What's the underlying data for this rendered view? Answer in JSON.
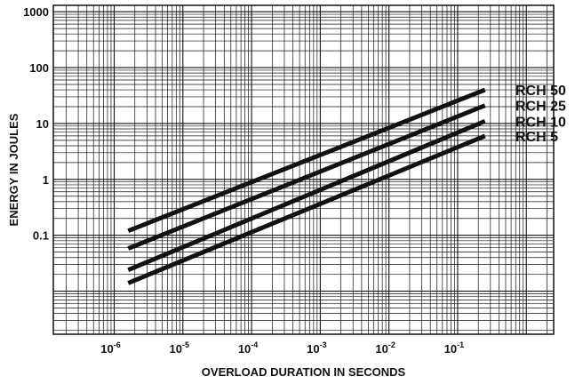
{
  "chart_data": {
    "type": "line",
    "xscale": "log",
    "yscale": "log",
    "xlabel": "OVERLOAD DURATION IN SECONDS",
    "ylabel": "ENERGY IN JOULES",
    "x_ticks": [
      {
        "value": 1e-06,
        "base": "10",
        "exp": "-6"
      },
      {
        "value": 1e-05,
        "base": "10",
        "exp": "-5"
      },
      {
        "value": 0.0001,
        "base": "10",
        "exp": "-4"
      },
      {
        "value": 0.001,
        "base": "10",
        "exp": "-3"
      },
      {
        "value": 0.01,
        "base": "10",
        "exp": "-2"
      },
      {
        "value": 0.1,
        "base": "10",
        "exp": "-1"
      }
    ],
    "y_ticks": [
      {
        "value": 0.1,
        "label": "0.1"
      },
      {
        "value": 1,
        "label": "1"
      },
      {
        "value": 10,
        "label": "10"
      },
      {
        "value": 100,
        "label": "100"
      },
      {
        "value": 1000,
        "label": "1000"
      }
    ],
    "xlim": [
      1.3e-07,
      2.5
    ],
    "ylim": [
      0.0017,
      1300
    ],
    "grid": true,
    "series": [
      {
        "name": "RCH 50",
        "x": [
          1.6e-06,
          0.25
        ],
        "y": [
          0.12,
          40
        ]
      },
      {
        "name": "RCH 25",
        "x": [
          1.6e-06,
          0.25
        ],
        "y": [
          0.058,
          21
        ]
      },
      {
        "name": "RCH 10",
        "x": [
          1.6e-06,
          0.25
        ],
        "y": [
          0.024,
          11
        ]
      },
      {
        "name": "RCH 5",
        "x": [
          1.6e-06,
          0.25
        ],
        "y": [
          0.014,
          6
        ]
      }
    ]
  }
}
